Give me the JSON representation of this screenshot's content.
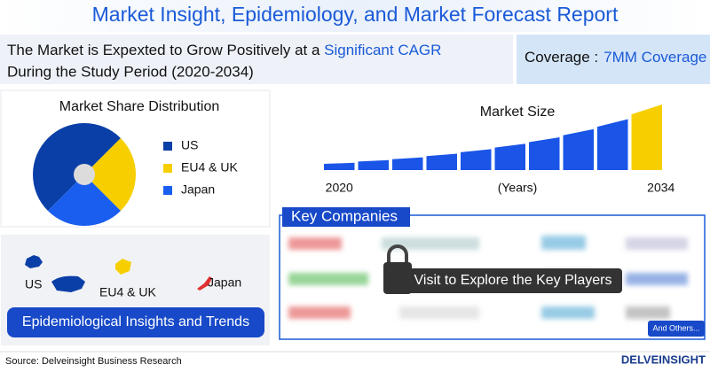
{
  "header": {
    "title": "Market Insight, Epidemiology, and Market Forecast Report"
  },
  "summary": {
    "parts": [
      "The Market is Expexted to Grow Positively at a ",
      "Significant CAGR",
      " During the Study Period (2020-2034)"
    ],
    "coverage_label": "Coverage :",
    "coverage_value": "7MM Coverage"
  },
  "chart_data": [
    {
      "type": "pie",
      "title": "Market Share Distribution",
      "categories": [
        "US",
        "EU4 & UK",
        "Japan"
      ],
      "values": [
        50,
        25,
        25
      ],
      "colors": [
        "#0b3fa8",
        "#f7cf00",
        "#1a5ef0"
      ]
    },
    {
      "type": "bar",
      "title": "Market Size",
      "x_label": "(Years)",
      "categories": [
        "2020",
        null,
        null,
        null,
        null,
        null,
        null,
        null,
        null,
        "2034"
      ],
      "values": [
        8,
        11,
        14,
        18,
        23,
        29,
        36,
        45,
        56,
        72
      ],
      "colors": [
        "#1a55e8",
        "#1a55e8",
        "#1a55e8",
        "#1a55e8",
        "#1a55e8",
        "#1a55e8",
        "#1a55e8",
        "#1a55e8",
        "#1a55e8",
        "#f7cf00"
      ]
    }
  ],
  "map": {
    "labels": [
      "US",
      "EU4 & UK",
      "Japan"
    ],
    "button": "Epidemiological Insights and Trends"
  },
  "companies": {
    "title": "Key Companies",
    "cta": "Visit to Explore the Key Players",
    "more": "And Others..."
  },
  "footer": {
    "source": "Source: Delveinsight Business Research",
    "logo": "DELVEINSIGHT"
  }
}
